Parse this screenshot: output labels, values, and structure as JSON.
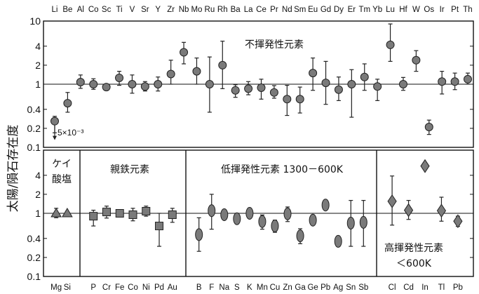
{
  "chart_data": {
    "type": "scatter",
    "ylabel": "太陽/隕石存在度",
    "yscale": "log",
    "ylim": [
      0.1,
      10
    ],
    "yticks": [
      "10",
      "4",
      "2",
      "1",
      "0.4",
      "0.2",
      "0.1"
    ],
    "top_panel": {
      "title": "不揮発性元素",
      "ylim": [
        0.1,
        10
      ],
      "annotation": "5×10⁻³",
      "points": [
        {
          "el": "Li",
          "y": 0.26,
          "lo": 0.17,
          "hi": 0.31,
          "marker": "circle",
          "arrow": true
        },
        {
          "el": "Be",
          "y": 0.5,
          "lo": 0.36,
          "hi": 0.74,
          "marker": "circle"
        },
        {
          "el": "Al",
          "y": 1.08,
          "lo": 0.86,
          "hi": 1.4,
          "marker": "circle"
        },
        {
          "el": "Co",
          "y": 1.0,
          "lo": 0.83,
          "hi": 1.22,
          "marker": "circle"
        },
        {
          "el": "Sc",
          "y": 0.9,
          "lo": 0.82,
          "hi": 1.0,
          "marker": "circle"
        },
        {
          "el": "Ti",
          "y": 1.26,
          "lo": 0.96,
          "hi": 1.6,
          "marker": "circle"
        },
        {
          "el": "V",
          "y": 1.0,
          "lo": 0.72,
          "hi": 1.4,
          "marker": "circle"
        },
        {
          "el": "Sr",
          "y": 0.92,
          "lo": 0.78,
          "hi": 1.1,
          "marker": "circle"
        },
        {
          "el": "Y",
          "y": 1.0,
          "lo": 0.78,
          "hi": 1.3,
          "marker": "circle"
        },
        {
          "el": "Zr",
          "y": 1.45,
          "lo": 1.0,
          "hi": 2.4,
          "marker": "circle"
        },
        {
          "el": "Nb",
          "y": 3.2,
          "lo": 2.1,
          "hi": 4.6,
          "marker": "circle"
        },
        {
          "el": "Mo",
          "y": 1.6,
          "lo": 1.0,
          "hi": 2.6,
          "marker": "circle"
        },
        {
          "el": "Ru",
          "y": 1.0,
          "lo": 0.36,
          "hi": 2.7,
          "marker": "circle"
        },
        {
          "el": "Rh",
          "y": 2.0,
          "lo": 0.85,
          "hi": 4.8,
          "marker": "circle"
        },
        {
          "el": "Ba",
          "y": 0.8,
          "lo": 0.62,
          "hi": 0.98,
          "marker": "circle"
        },
        {
          "el": "La",
          "y": 0.85,
          "lo": 0.68,
          "hi": 1.1,
          "marker": "circle"
        },
        {
          "el": "Ce",
          "y": 0.88,
          "lo": 0.58,
          "hi": 1.2,
          "marker": "circle"
        },
        {
          "el": "Pr",
          "y": 0.74,
          "lo": 0.6,
          "hi": 0.95,
          "marker": "circle"
        },
        {
          "el": "Nd",
          "y": 0.58,
          "lo": 0.32,
          "hi": 0.96,
          "marker": "circle"
        },
        {
          "el": "Sm",
          "y": 0.58,
          "lo": 0.35,
          "hi": 0.9,
          "marker": "circle"
        },
        {
          "el": "Eu",
          "y": 1.5,
          "lo": 0.8,
          "hi": 2.6,
          "marker": "circle"
        },
        {
          "el": "Gd",
          "y": 1.05,
          "lo": 0.48,
          "hi": 2.3,
          "marker": "circle"
        },
        {
          "el": "Dy",
          "y": 0.82,
          "lo": 0.55,
          "hi": 1.3,
          "marker": "circle"
        },
        {
          "el": "Er",
          "y": 1.0,
          "lo": 0.3,
          "hi": 1.7,
          "marker": "circle"
        },
        {
          "el": "Tm",
          "y": 1.3,
          "lo": 0.8,
          "hi": 2.1,
          "marker": "circle"
        },
        {
          "el": "Yb",
          "y": 0.92,
          "lo": 0.55,
          "hi": 1.2,
          "marker": "circle"
        },
        {
          "el": "Lu",
          "y": 4.2,
          "lo": 2.3,
          "hi": 9.0,
          "marker": "circle"
        },
        {
          "el": "Hf",
          "y": 1.0,
          "lo": 0.8,
          "hi": 1.28,
          "marker": "circle"
        },
        {
          "el": "W",
          "y": 2.4,
          "lo": 1.6,
          "hi": 3.4,
          "marker": "circle"
        },
        {
          "el": "Os",
          "y": 0.21,
          "lo": 0.16,
          "hi": 0.27,
          "marker": "circle"
        },
        {
          "el": "Ir",
          "y": 1.1,
          "lo": 0.7,
          "hi": 1.6,
          "marker": "circle"
        },
        {
          "el": "Pt",
          "y": 1.1,
          "lo": 0.82,
          "hi": 1.5,
          "marker": "circle"
        },
        {
          "el": "Th",
          "y": 1.2,
          "lo": 1.0,
          "hi": 1.5,
          "marker": "circle"
        }
      ]
    },
    "bottom_panels": [
      {
        "title_lines": [
          "ケイ",
          "酸塩"
        ],
        "points": [
          {
            "el": "Mg",
            "y": 1.0,
            "lo": 0.85,
            "hi": 1.2,
            "marker": "triangle"
          },
          {
            "el": "Si",
            "y": 1.0,
            "lo": 1.0,
            "hi": 1.0,
            "marker": "triangle"
          }
        ]
      },
      {
        "title_lines": [
          "親鉄元素"
        ],
        "points": [
          {
            "el": "P",
            "y": 0.9,
            "lo": 0.63,
            "hi": 1.12,
            "marker": "square"
          },
          {
            "el": "Cr",
            "y": 1.05,
            "lo": 0.84,
            "hi": 1.3,
            "marker": "square"
          },
          {
            "el": "Fe",
            "y": 1.0,
            "lo": 0.96,
            "hi": 1.05,
            "marker": "square"
          },
          {
            "el": "Co",
            "y": 0.95,
            "lo": 0.76,
            "hi": 1.2,
            "marker": "square"
          },
          {
            "el": "Ni",
            "y": 1.08,
            "lo": 0.9,
            "hi": 1.3,
            "marker": "square"
          },
          {
            "el": "Pd",
            "y": 0.63,
            "lo": 0.3,
            "hi": 1.0,
            "marker": "square"
          },
          {
            "el": "Au",
            "y": 0.95,
            "lo": 0.72,
            "hi": 1.2,
            "marker": "square"
          }
        ]
      },
      {
        "title_lines": [
          "低揮発性元素 1300－600K"
        ],
        "points": [
          {
            "el": "B",
            "y": 0.46,
            "lo": 0.25,
            "hi": 0.85,
            "marker": "ellipse"
          },
          {
            "el": "F",
            "y": 1.1,
            "lo": 0.56,
            "hi": 2.0,
            "marker": "ellipse"
          },
          {
            "el": "Na",
            "y": 0.95,
            "lo": 0.86,
            "hi": 1.05,
            "marker": "ellipse"
          },
          {
            "el": "S",
            "y": 0.82,
            "lo": 0.68,
            "hi": 1.0,
            "marker": "ellipse"
          },
          {
            "el": "K",
            "y": 1.0,
            "lo": 0.92,
            "hi": 1.1,
            "marker": "ellipse"
          },
          {
            "el": "Mn",
            "y": 0.74,
            "lo": 0.56,
            "hi": 0.94,
            "marker": "ellipse"
          },
          {
            "el": "Cu",
            "y": 0.63,
            "lo": 0.5,
            "hi": 0.78,
            "marker": "ellipse"
          },
          {
            "el": "Zn",
            "y": 0.98,
            "lo": 0.74,
            "hi": 1.26,
            "marker": "ellipse"
          },
          {
            "el": "Ga",
            "y": 0.44,
            "lo": 0.33,
            "hi": 0.57,
            "marker": "ellipse"
          },
          {
            "el": "Ge",
            "y": 0.78,
            "lo": 0.68,
            "hi": 0.9,
            "marker": "ellipse"
          },
          {
            "el": "Pb",
            "y": 1.35,
            "lo": 1.25,
            "hi": 1.45,
            "marker": "ellipse"
          },
          {
            "el": "Ag",
            "y": 0.36,
            "lo": 0.3,
            "hi": 0.42,
            "marker": "ellipse"
          },
          {
            "el": "Sn",
            "y": 0.7,
            "lo": 0.3,
            "hi": 1.6,
            "marker": "ellipse"
          },
          {
            "el": "Sb",
            "y": 0.72,
            "lo": 0.3,
            "hi": 1.6,
            "marker": "ellipse"
          }
        ]
      },
      {
        "title_lines": [
          "高揮発性元素",
          "＜600K"
        ],
        "title_pos": "bottom",
        "points": [
          {
            "el": "Cl",
            "y": 1.55,
            "lo": 0.65,
            "hi": 3.9,
            "marker": "diamond"
          },
          {
            "el": "Cd",
            "y": 1.12,
            "lo": 0.8,
            "hi": 1.6,
            "marker": "diamond"
          },
          {
            "el": "In",
            "y": 5.6,
            "lo": 5.0,
            "hi": 6.3,
            "marker": "diamond"
          },
          {
            "el": "Tl",
            "y": 1.1,
            "lo": 0.75,
            "hi": 1.8,
            "marker": "diamond"
          },
          {
            "el": "Pb",
            "y": 0.75,
            "lo": 0.62,
            "hi": 0.9,
            "marker": "diamond"
          }
        ]
      }
    ],
    "colors": {
      "marker_fill": "#7a7a7a",
      "marker_stroke": "#222222",
      "axis": "#111111"
    }
  }
}
